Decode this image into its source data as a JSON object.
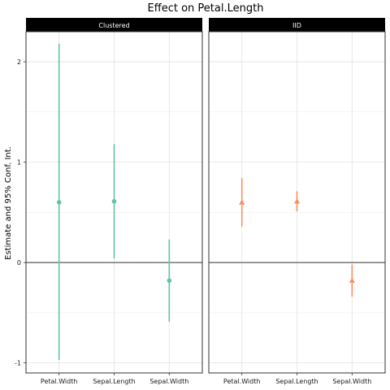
{
  "chart_data": {
    "type": "scatter",
    "subtype": "coefficient-plot-with-confidence-intervals",
    "title": "Effect on Petal.Length",
    "ylabel": "Estimate and 95% Conf. Int.",
    "xlabel": "",
    "ylim": [
      -1.1,
      2.3
    ],
    "yticks": [
      -1,
      0,
      1,
      2
    ],
    "reference_line": 0,
    "grid": true,
    "categories": [
      "Petal.Width",
      "Sepal.Length",
      "Sepal.Width"
    ],
    "panels": [
      {
        "label": "Clustered",
        "color": "#66c2a5",
        "marker": "circle",
        "estimates": [
          0.6,
          0.61,
          -0.18
        ],
        "lower": [
          -0.97,
          0.04,
          -0.59
        ],
        "upper": [
          2.18,
          1.18,
          0.23
        ]
      },
      {
        "label": "IID",
        "color": "#fc8d62",
        "marker": "triangle",
        "estimates": [
          0.6,
          0.61,
          -0.18
        ],
        "lower": [
          0.36,
          0.51,
          -0.34
        ],
        "upper": [
          0.84,
          0.71,
          -0.02
        ]
      }
    ]
  }
}
